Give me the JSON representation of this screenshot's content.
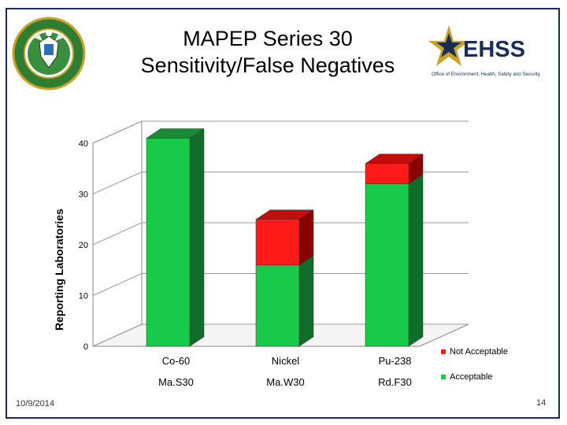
{
  "slide": {
    "title_line1": "MAPEP Series 30",
    "title_line2": "Sensitivity/False Negatives",
    "date": "10/9/2014",
    "page_number": "14",
    "left_logo_icon": "doe-seal-icon",
    "right_logo_icon": "ehss-star-logo-icon",
    "ehss_text": "EHSS",
    "ehss_subtitle": "Office of Environment, Health, Safety and Security"
  },
  "chart_data": {
    "type": "bar",
    "stacked": true,
    "three_d": true,
    "categories": [
      "Co-60",
      "Nickel",
      "Pu-238"
    ],
    "category_sublabels": [
      "Ma.S30",
      "Ma.W30",
      "Rd.F30"
    ],
    "series": [
      {
        "name": "Acceptable",
        "values": [
          41,
          16,
          32
        ],
        "color": "#18c94a",
        "side_color": "#0f6d29",
        "top_color": "#1a8a35"
      },
      {
        "name": "Not Acceptable",
        "values": [
          0,
          9,
          4
        ],
        "color": "#ff1a1a",
        "side_color": "#8a0000",
        "top_color": "#c40c0c"
      }
    ],
    "ylabel": "Reporting Laboratories",
    "ylim": [
      0,
      40
    ],
    "yticks": [
      0,
      10,
      20,
      30,
      40
    ],
    "grid": true,
    "legend_position": "right"
  }
}
